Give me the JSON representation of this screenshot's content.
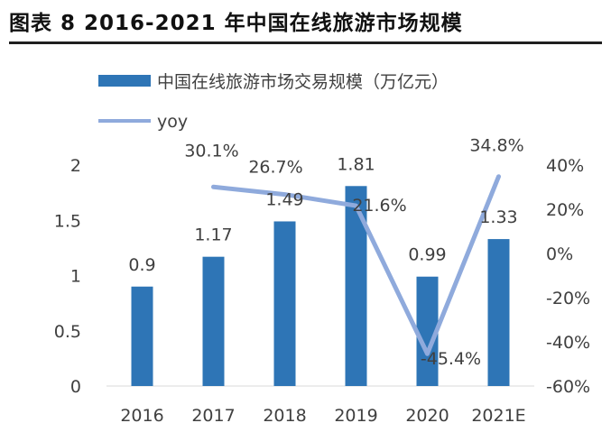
{
  "title": "图表 8 2016-2021 年中国在线旅游市场规模",
  "colors": {
    "bar": "#2e75b6",
    "line": "#8faadc",
    "text": "#404040",
    "axis": "#d9d9d9"
  },
  "chart_data": {
    "type": "bar",
    "categories": [
      "2016",
      "2017",
      "2018",
      "2019",
      "2020",
      "2021E"
    ],
    "series": [
      {
        "name": "中国在线旅游市场交易规模（万亿元）",
        "type": "bar",
        "axis": "left",
        "values": [
          0.9,
          1.17,
          1.49,
          1.81,
          0.99,
          1.33
        ],
        "labels": [
          "0.9",
          "1.17",
          "1.49",
          "1.81",
          "0.99",
          "1.33"
        ]
      },
      {
        "name": "yoy",
        "type": "line",
        "axis": "right",
        "x": [
          "2017",
          "2018",
          "2019",
          "2020",
          "2021E"
        ],
        "values": [
          30.1,
          26.7,
          21.6,
          -45.4,
          34.8
        ],
        "labels": [
          "30.1%",
          "26.7%",
          "21.6%",
          "-45.4%",
          "34.8%"
        ]
      }
    ],
    "y_left": {
      "ticks": [
        "0",
        "0.5",
        "1",
        "1.5",
        "2"
      ],
      "ylim": [
        0,
        2
      ]
    },
    "y_right": {
      "ticks": [
        "-60%",
        "-40%",
        "-20%",
        "0%",
        "20%",
        "40%"
      ],
      "ylim": [
        -60,
        40
      ]
    },
    "legend": "top-left",
    "grid": false
  }
}
